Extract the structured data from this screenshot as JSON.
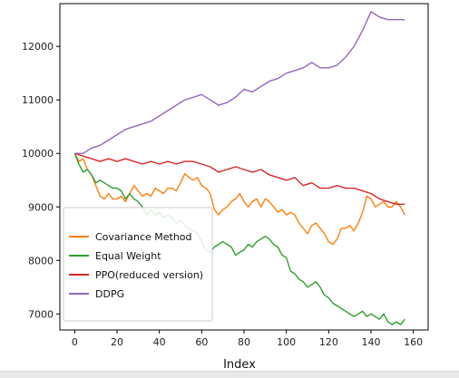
{
  "chart_data": {
    "type": "line",
    "xlabel": "Index",
    "ylabel": "",
    "title": "",
    "xlim": [
      -7,
      167
    ],
    "ylim": [
      6700,
      12800
    ],
    "xticks": [
      0,
      20,
      40,
      60,
      80,
      100,
      120,
      140,
      160
    ],
    "yticks": [
      7000,
      8000,
      9000,
      10000,
      11000,
      12000
    ],
    "grid": false,
    "legend_position": "lower-left",
    "series": [
      {
        "name": "Covariance Method",
        "color": "#ff7f0e",
        "points": [
          [
            0,
            10000
          ],
          [
            2,
            9850
          ],
          [
            4,
            9900
          ],
          [
            6,
            9700
          ],
          [
            8,
            9600
          ],
          [
            10,
            9400
          ],
          [
            12,
            9200
          ],
          [
            14,
            9150
          ],
          [
            16,
            9250
          ],
          [
            18,
            9150
          ],
          [
            20,
            9150
          ],
          [
            22,
            9200
          ],
          [
            24,
            9100
          ],
          [
            26,
            9250
          ],
          [
            28,
            9400
          ],
          [
            30,
            9300
          ],
          [
            32,
            9200
          ],
          [
            34,
            9250
          ],
          [
            36,
            9200
          ],
          [
            38,
            9350
          ],
          [
            40,
            9300
          ],
          [
            42,
            9250
          ],
          [
            44,
            9350
          ],
          [
            46,
            9350
          ],
          [
            48,
            9300
          ],
          [
            50,
            9450
          ],
          [
            52,
            9620
          ],
          [
            54,
            9550
          ],
          [
            56,
            9500
          ],
          [
            58,
            9550
          ],
          [
            60,
            9400
          ],
          [
            62,
            9350
          ],
          [
            64,
            9250
          ],
          [
            66,
            8950
          ],
          [
            68,
            8850
          ],
          [
            70,
            8950
          ],
          [
            72,
            9000
          ],
          [
            74,
            9100
          ],
          [
            76,
            9150
          ],
          [
            78,
            9250
          ],
          [
            80,
            9100
          ],
          [
            82,
            9000
          ],
          [
            84,
            9100
          ],
          [
            86,
            9150
          ],
          [
            88,
            9000
          ],
          [
            90,
            9150
          ],
          [
            92,
            9100
          ],
          [
            94,
            9000
          ],
          [
            96,
            8900
          ],
          [
            98,
            8950
          ],
          [
            100,
            8850
          ],
          [
            102,
            8900
          ],
          [
            104,
            8850
          ],
          [
            106,
            8700
          ],
          [
            108,
            8600
          ],
          [
            110,
            8500
          ],
          [
            112,
            8650
          ],
          [
            114,
            8700
          ],
          [
            116,
            8600
          ],
          [
            118,
            8500
          ],
          [
            120,
            8350
          ],
          [
            122,
            8300
          ],
          [
            124,
            8400
          ],
          [
            126,
            8600
          ],
          [
            128,
            8600
          ],
          [
            130,
            8650
          ],
          [
            132,
            8550
          ],
          [
            134,
            8700
          ],
          [
            136,
            8900
          ],
          [
            138,
            9200
          ],
          [
            140,
            9150
          ],
          [
            142,
            9000
          ],
          [
            144,
            9050
          ],
          [
            146,
            9100
          ],
          [
            148,
            9000
          ],
          [
            150,
            9000
          ],
          [
            152,
            9100
          ],
          [
            154,
            9000
          ],
          [
            156,
            8850
          ]
        ]
      },
      {
        "name": "Equal Weight",
        "color": "#2ca02c",
        "points": [
          [
            0,
            10000
          ],
          [
            2,
            9800
          ],
          [
            4,
            9650
          ],
          [
            6,
            9700
          ],
          [
            8,
            9600
          ],
          [
            10,
            9450
          ],
          [
            12,
            9500
          ],
          [
            14,
            9450
          ],
          [
            16,
            9400
          ],
          [
            18,
            9350
          ],
          [
            20,
            9350
          ],
          [
            22,
            9300
          ],
          [
            24,
            9150
          ],
          [
            26,
            9250
          ],
          [
            28,
            9150
          ],
          [
            30,
            9100
          ],
          [
            32,
            9000
          ],
          [
            34,
            8850
          ],
          [
            36,
            8950
          ],
          [
            38,
            8850
          ],
          [
            40,
            8900
          ],
          [
            42,
            8800
          ],
          [
            44,
            8850
          ],
          [
            46,
            8800
          ],
          [
            48,
            8700
          ],
          [
            50,
            8750
          ],
          [
            52,
            8650
          ],
          [
            54,
            8600
          ],
          [
            56,
            8550
          ],
          [
            58,
            8500
          ],
          [
            60,
            8350
          ],
          [
            62,
            8200
          ],
          [
            64,
            8150
          ],
          [
            66,
            8250
          ],
          [
            68,
            8300
          ],
          [
            70,
            8350
          ],
          [
            72,
            8300
          ],
          [
            74,
            8250
          ],
          [
            76,
            8100
          ],
          [
            78,
            8150
          ],
          [
            80,
            8200
          ],
          [
            82,
            8300
          ],
          [
            84,
            8250
          ],
          [
            86,
            8350
          ],
          [
            88,
            8400
          ],
          [
            90,
            8450
          ],
          [
            92,
            8400
          ],
          [
            94,
            8300
          ],
          [
            96,
            8250
          ],
          [
            98,
            8100
          ],
          [
            100,
            8050
          ],
          [
            102,
            7800
          ],
          [
            104,
            7750
          ],
          [
            106,
            7650
          ],
          [
            108,
            7600
          ],
          [
            110,
            7500
          ],
          [
            112,
            7550
          ],
          [
            114,
            7600
          ],
          [
            116,
            7500
          ],
          [
            118,
            7350
          ],
          [
            120,
            7300
          ],
          [
            122,
            7200
          ],
          [
            124,
            7150
          ],
          [
            126,
            7100
          ],
          [
            128,
            7050
          ],
          [
            130,
            7000
          ],
          [
            132,
            6950
          ],
          [
            134,
            7000
          ],
          [
            136,
            7050
          ],
          [
            138,
            6950
          ],
          [
            140,
            7000
          ],
          [
            142,
            6950
          ],
          [
            144,
            6900
          ],
          [
            146,
            7000
          ],
          [
            148,
            6850
          ],
          [
            150,
            6800
          ],
          [
            152,
            6850
          ],
          [
            154,
            6800
          ],
          [
            156,
            6900
          ]
        ]
      },
      {
        "name": "PPO(reduced version)",
        "color": "#d62728",
        "points": [
          [
            0,
            10000
          ],
          [
            4,
            9950
          ],
          [
            8,
            9900
          ],
          [
            12,
            9850
          ],
          [
            16,
            9900
          ],
          [
            20,
            9850
          ],
          [
            24,
            9900
          ],
          [
            28,
            9850
          ],
          [
            32,
            9800
          ],
          [
            36,
            9850
          ],
          [
            40,
            9800
          ],
          [
            44,
            9850
          ],
          [
            48,
            9800
          ],
          [
            52,
            9850
          ],
          [
            56,
            9850
          ],
          [
            60,
            9800
          ],
          [
            64,
            9750
          ],
          [
            68,
            9650
          ],
          [
            72,
            9700
          ],
          [
            76,
            9750
          ],
          [
            80,
            9700
          ],
          [
            84,
            9650
          ],
          [
            88,
            9700
          ],
          [
            92,
            9600
          ],
          [
            96,
            9550
          ],
          [
            100,
            9500
          ],
          [
            104,
            9550
          ],
          [
            108,
            9400
          ],
          [
            112,
            9450
          ],
          [
            116,
            9350
          ],
          [
            120,
            9350
          ],
          [
            124,
            9400
          ],
          [
            128,
            9350
          ],
          [
            132,
            9350
          ],
          [
            136,
            9300
          ],
          [
            140,
            9250
          ],
          [
            144,
            9150
          ],
          [
            148,
            9100
          ],
          [
            152,
            9050
          ],
          [
            156,
            9050
          ]
        ]
      },
      {
        "name": "DDPG",
        "color": "#9467bd",
        "points": [
          [
            0,
            10000
          ],
          [
            4,
            10000
          ],
          [
            8,
            10100
          ],
          [
            12,
            10150
          ],
          [
            16,
            10250
          ],
          [
            20,
            10350
          ],
          [
            24,
            10450
          ],
          [
            28,
            10500
          ],
          [
            32,
            10550
          ],
          [
            36,
            10600
          ],
          [
            40,
            10700
          ],
          [
            44,
            10800
          ],
          [
            48,
            10900
          ],
          [
            52,
            11000
          ],
          [
            56,
            11050
          ],
          [
            60,
            11100
          ],
          [
            64,
            11000
          ],
          [
            68,
            10900
          ],
          [
            72,
            10950
          ],
          [
            76,
            11050
          ],
          [
            80,
            11200
          ],
          [
            84,
            11150
          ],
          [
            88,
            11250
          ],
          [
            92,
            11350
          ],
          [
            96,
            11400
          ],
          [
            100,
            11500
          ],
          [
            104,
            11550
          ],
          [
            108,
            11600
          ],
          [
            112,
            11700
          ],
          [
            116,
            11600
          ],
          [
            120,
            11600
          ],
          [
            124,
            11650
          ],
          [
            128,
            11800
          ],
          [
            132,
            12000
          ],
          [
            136,
            12300
          ],
          [
            140,
            12650
          ],
          [
            144,
            12550
          ],
          [
            148,
            12500
          ],
          [
            152,
            12500
          ],
          [
            156,
            12500
          ]
        ]
      }
    ]
  }
}
